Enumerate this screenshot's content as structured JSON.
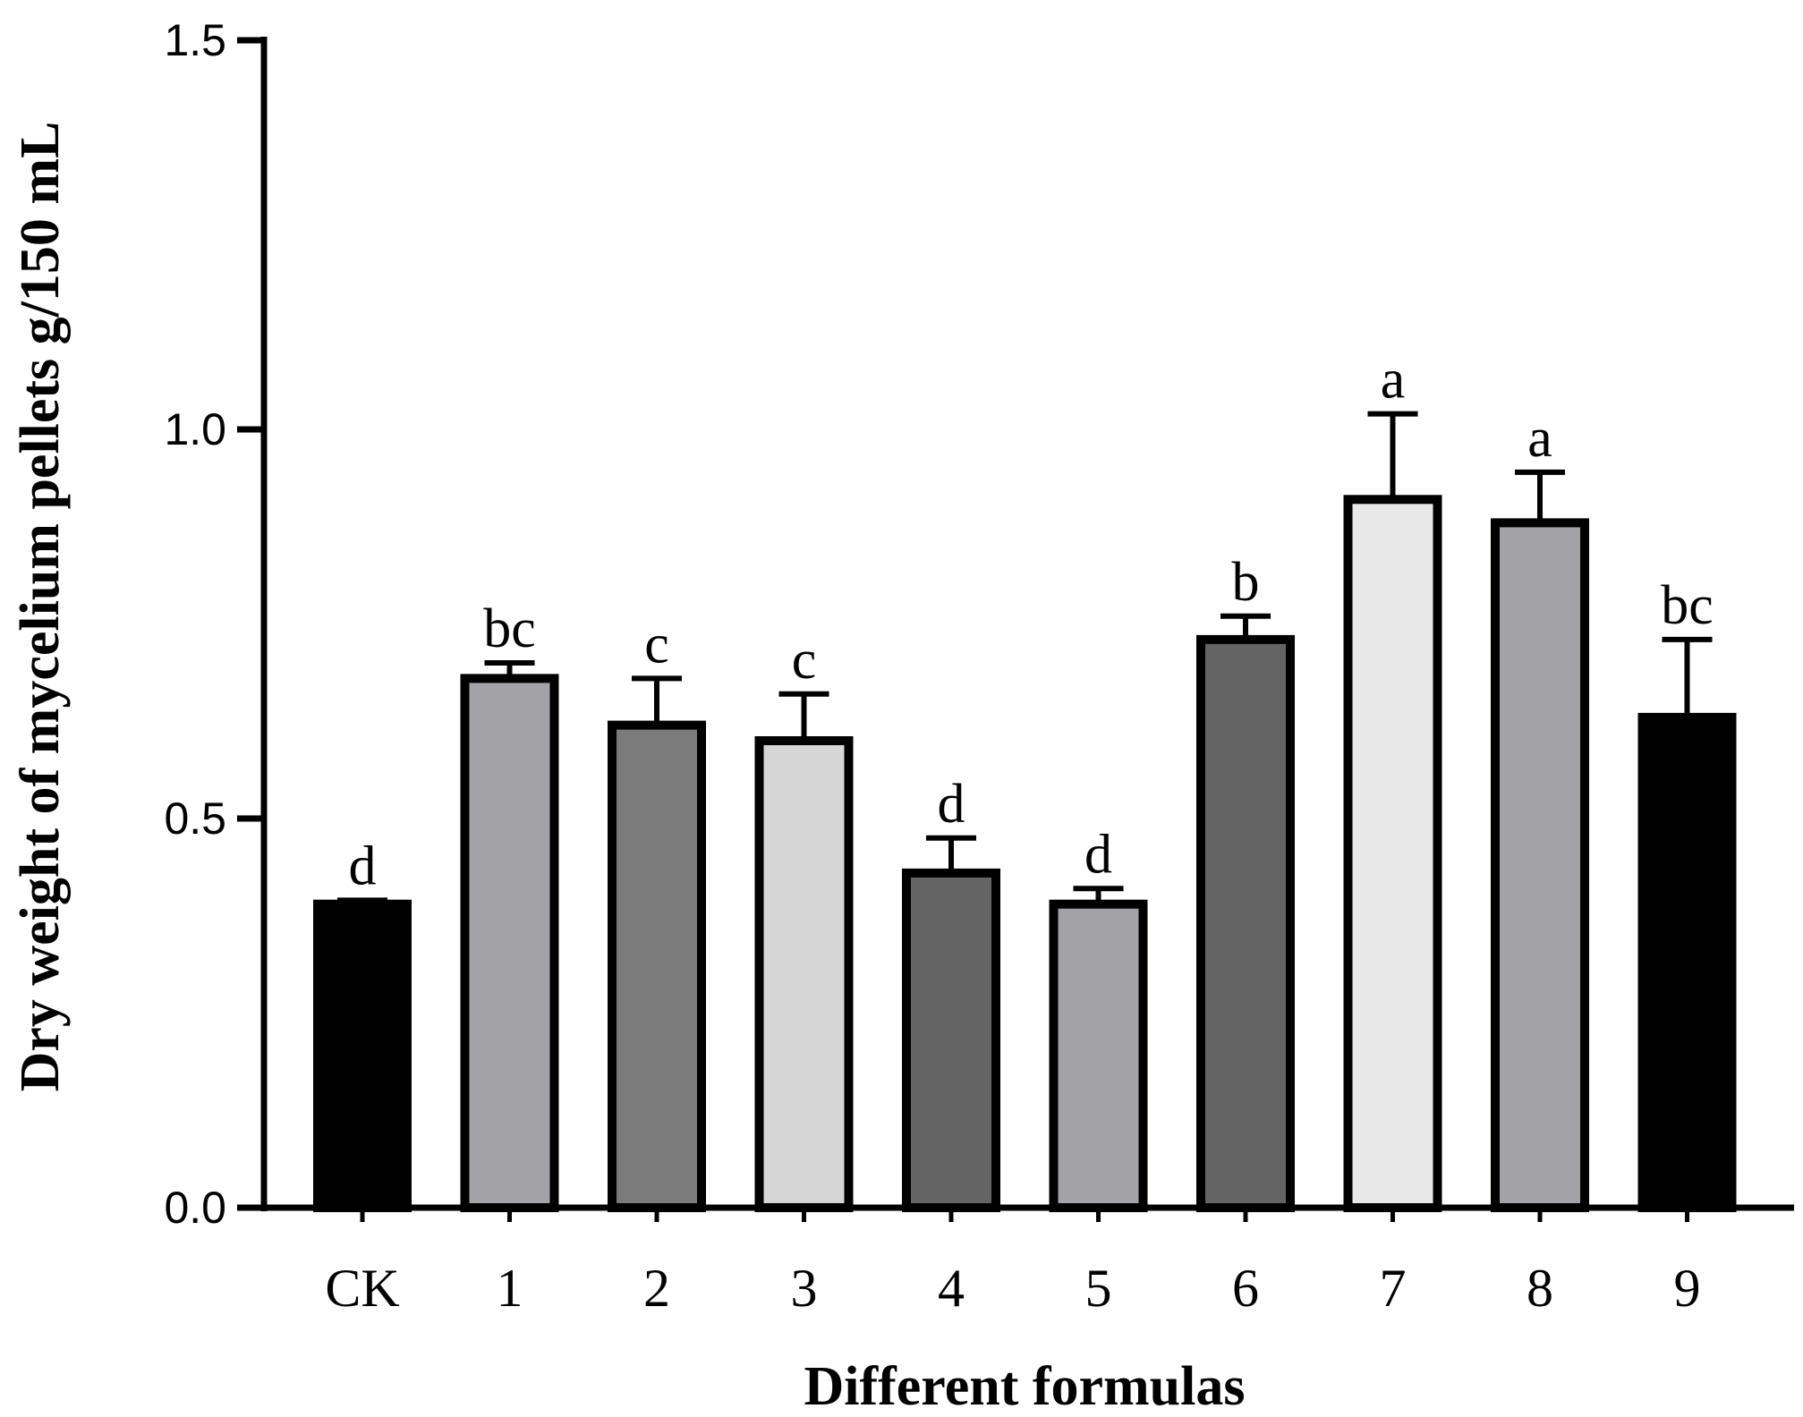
{
  "chart_data": {
    "type": "bar",
    "title": "",
    "xlabel": "Different formulas",
    "ylabel": "Dry weight of mycelium pellets g/150 mL",
    "ylim": [
      0,
      1.5
    ],
    "yticks": [
      "0.0",
      "0.5",
      "1.0",
      "1.5"
    ],
    "grid": false,
    "categories": [
      "CK",
      "1",
      "2",
      "3",
      "4",
      "5",
      "6",
      "7",
      "8",
      "9"
    ],
    "values": [
      0.39,
      0.68,
      0.62,
      0.6,
      0.43,
      0.39,
      0.73,
      0.91,
      0.88,
      0.63
    ],
    "errors": [
      0.005,
      0.02,
      0.06,
      0.06,
      0.045,
      0.02,
      0.03,
      0.11,
      0.065,
      0.1
    ],
    "significance": [
      "d",
      "bc",
      "c",
      "c",
      "d",
      "d",
      "b",
      "a",
      "a",
      "bc"
    ],
    "bar_colors": [
      "#000000",
      "#a3a2a7",
      "#7b7b7b",
      "#d6d6d6",
      "#646464",
      "#a3a2a7",
      "#646464",
      "#e8e8e8",
      "#a3a2a7",
      "#000000"
    ]
  }
}
